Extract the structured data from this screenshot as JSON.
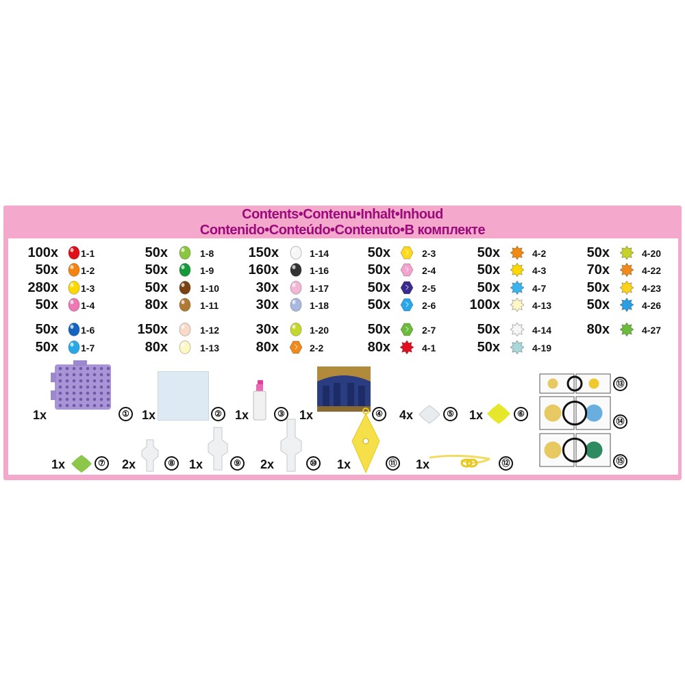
{
  "header": {
    "line1": "Contents•Contenu•Inhalt•Inhoud",
    "line2": "Contenido•Conteúdo•Contenuto•В комплекте"
  },
  "colors": {
    "frame": "#f4a9cc",
    "title": "#9b0a7a"
  },
  "bead_columns": [
    [
      {
        "qty": "100x",
        "code": "1-1",
        "shape": "round",
        "color": "#e0101a"
      },
      {
        "qty": "50x",
        "code": "1-2",
        "shape": "round",
        "color": "#f5840f"
      },
      {
        "qty": "280x",
        "code": "1-3",
        "shape": "round",
        "color": "#ffd800"
      },
      {
        "qty": "50x",
        "code": "1-4",
        "shape": "round",
        "color": "#ee78b4"
      },
      {
        "qty": "50x",
        "code": "1-6",
        "shape": "round",
        "color": "#1565c0"
      },
      {
        "qty": "50x",
        "code": "1-7",
        "shape": "round",
        "color": "#29a8e8"
      }
    ],
    [
      {
        "qty": "50x",
        "code": "1-8",
        "shape": "round",
        "color": "#8cc63e"
      },
      {
        "qty": "50x",
        "code": "1-9",
        "shape": "round",
        "color": "#149a3a"
      },
      {
        "qty": "50x",
        "code": "1-10",
        "shape": "round",
        "color": "#7a4212"
      },
      {
        "qty": "80x",
        "code": "1-11",
        "shape": "round",
        "color": "#b07a35"
      },
      {
        "qty": "150x",
        "code": "1-12",
        "shape": "round",
        "color": "#fbd9c8"
      },
      {
        "qty": "80x",
        "code": "1-13",
        "shape": "round",
        "color": "#fdf7c4"
      }
    ],
    [
      {
        "qty": "150x",
        "code": "1-14",
        "shape": "round",
        "color": "#f6f6f6"
      },
      {
        "qty": "160x",
        "code": "1-16",
        "shape": "round",
        "color": "#333333"
      },
      {
        "qty": "30x",
        "code": "1-17",
        "shape": "round",
        "color": "#f3b6d3"
      },
      {
        "qty": "30x",
        "code": "1-18",
        "shape": "round",
        "color": "#a9b8e0"
      },
      {
        "qty": "30x",
        "code": "1-20",
        "shape": "round",
        "color": "#c4d82c"
      },
      {
        "qty": "80x",
        "code": "2-2",
        "shape": "hex",
        "color": "#f08a1a"
      }
    ],
    [
      {
        "qty": "50x",
        "code": "2-3",
        "shape": "hex",
        "color": "#ffd91a"
      },
      {
        "qty": "50x",
        "code": "2-4",
        "shape": "hex",
        "color": "#f4a3cf"
      },
      {
        "qty": "50x",
        "code": "2-5",
        "shape": "hex",
        "color": "#3a2a8c"
      },
      {
        "qty": "50x",
        "code": "2-6",
        "shape": "hex",
        "color": "#2aa7ea"
      },
      {
        "qty": "50x",
        "code": "2-7",
        "shape": "hex",
        "color": "#6cbb3c"
      },
      {
        "qty": "80x",
        "code": "4-1",
        "shape": "star",
        "color": "#e01020"
      }
    ],
    [
      {
        "qty": "50x",
        "code": "4-2",
        "shape": "star",
        "color": "#f08a10"
      },
      {
        "qty": "50x",
        "code": "4-3",
        "shape": "star",
        "color": "#ffd800"
      },
      {
        "qty": "50x",
        "code": "4-7",
        "shape": "star",
        "color": "#3ab4ee"
      },
      {
        "qty": "100x",
        "code": "4-13",
        "shape": "star",
        "color": "#fdf7c8"
      },
      {
        "qty": "50x",
        "code": "4-14",
        "shape": "star",
        "color": "#f6f6f6"
      },
      {
        "qty": "50x",
        "code": "4-19",
        "shape": "star",
        "color": "#a9d8dc"
      }
    ],
    [
      {
        "qty": "50x",
        "code": "4-20",
        "shape": "star",
        "color": "#c6d22a"
      },
      {
        "qty": "70x",
        "code": "4-22",
        "shape": "star",
        "color": "#f08a1a"
      },
      {
        "qty": "50x",
        "code": "4-23",
        "shape": "star",
        "color": "#ffd21a"
      },
      {
        "qty": "50x",
        "code": "4-26",
        "shape": "star",
        "color": "#2a9ee0"
      },
      {
        "qty": "80x",
        "code": "4-27",
        "shape": "star",
        "color": "#6cbb3c"
      }
    ]
  ],
  "accessories": [
    {
      "qty": "1x",
      "num": "①",
      "icon": "bead-tray"
    },
    {
      "qty": "1x",
      "num": "②",
      "icon": "ironing-sheet"
    },
    {
      "qty": "1x",
      "num": "③",
      "icon": "spray-bottle"
    },
    {
      "qty": "1x",
      "num": "④",
      "icon": "backdrop-picture"
    },
    {
      "qty": "4x",
      "num": "⑤",
      "icon": "stand-clear"
    },
    {
      "qty": "1x",
      "num": "⑥",
      "icon": "stand-yellow"
    },
    {
      "qty": "1x",
      "num": "⑦",
      "icon": "stand-green"
    },
    {
      "qty": "2x",
      "num": "⑧",
      "icon": "connector"
    },
    {
      "qty": "1x",
      "num": "⑨",
      "icon": "connector"
    },
    {
      "qty": "2x",
      "num": "⑩",
      "icon": "connector-tall"
    },
    {
      "qty": "1x",
      "num": "⑪",
      "icon": "diamond-tray"
    },
    {
      "qty": "1x",
      "num": "⑫",
      "icon": "chain"
    },
    {
      "num": "⑬",
      "icon": "pattern-sheet"
    },
    {
      "num": "⑭",
      "icon": "pattern-sheet"
    },
    {
      "num": "⑮",
      "icon": "pattern-sheet"
    }
  ]
}
